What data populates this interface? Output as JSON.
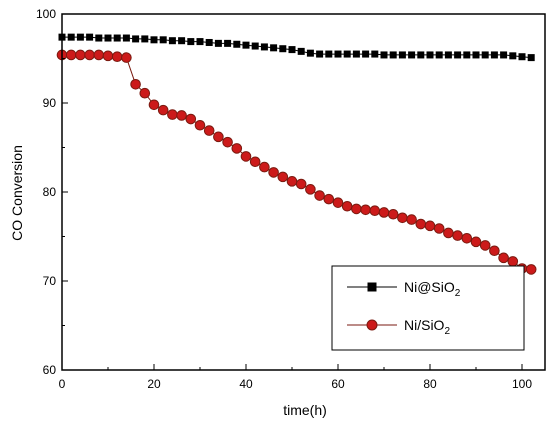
{
  "chart_data": {
    "type": "line",
    "xlabel": "time(h)",
    "ylabel": "CO Conversion",
    "xlim": [
      0,
      105
    ],
    "ylim": [
      60,
      100
    ],
    "x_ticks": [
      "0",
      "20",
      "40",
      "60",
      "80",
      "100"
    ],
    "y_ticks": [
      "60",
      "70",
      "80",
      "90",
      "100"
    ],
    "grid": false,
    "legend": {
      "position": "lower-right",
      "items": [
        {
          "prefix": "Ni@SiO",
          "subscript": "2"
        },
        {
          "prefix": "Ni/SiO",
          "subscript": "2"
        }
      ]
    },
    "series": [
      {
        "name": "Ni@SiO2",
        "marker": "square",
        "color": "#000000",
        "x": [
          0,
          2,
          4,
          6,
          8,
          10,
          12,
          14,
          16,
          18,
          20,
          22,
          24,
          26,
          28,
          30,
          32,
          34,
          36,
          38,
          40,
          42,
          44,
          46,
          48,
          50,
          52,
          54,
          56,
          58,
          60,
          62,
          64,
          66,
          68,
          70,
          72,
          74,
          76,
          78,
          80,
          82,
          84,
          86,
          88,
          90,
          92,
          94,
          96,
          98,
          100,
          102
        ],
        "y": [
          97.4,
          97.4,
          97.4,
          97.4,
          97.3,
          97.3,
          97.3,
          97.3,
          97.2,
          97.2,
          97.1,
          97.1,
          97.0,
          97.0,
          96.9,
          96.9,
          96.8,
          96.7,
          96.7,
          96.6,
          96.5,
          96.4,
          96.3,
          96.2,
          96.1,
          96.0,
          95.8,
          95.6,
          95.5,
          95.5,
          95.5,
          95.5,
          95.5,
          95.5,
          95.5,
          95.4,
          95.4,
          95.4,
          95.4,
          95.4,
          95.4,
          95.4,
          95.4,
          95.4,
          95.4,
          95.4,
          95.4,
          95.4,
          95.4,
          95.3,
          95.2,
          95.1
        ]
      },
      {
        "name": "Ni/SiO2",
        "marker": "circle",
        "color": "#cc1a1a",
        "x": [
          0,
          2,
          4,
          6,
          8,
          10,
          12,
          14,
          16,
          18,
          20,
          22,
          24,
          26,
          28,
          30,
          32,
          34,
          36,
          38,
          40,
          42,
          44,
          46,
          48,
          50,
          52,
          54,
          56,
          58,
          60,
          62,
          64,
          66,
          68,
          70,
          72,
          74,
          76,
          78,
          80,
          82,
          84,
          86,
          88,
          90,
          92,
          94,
          96,
          98,
          100,
          102
        ],
        "y": [
          95.4,
          95.4,
          95.4,
          95.4,
          95.4,
          95.3,
          95.2,
          95.1,
          92.1,
          91.1,
          89.8,
          89.2,
          88.7,
          88.6,
          88.2,
          87.5,
          86.9,
          86.2,
          85.6,
          84.9,
          84.0,
          83.4,
          82.8,
          82.2,
          81.7,
          81.2,
          80.9,
          80.3,
          79.6,
          79.2,
          78.8,
          78.4,
          78.1,
          78.0,
          77.9,
          77.7,
          77.5,
          77.1,
          76.9,
          76.4,
          76.2,
          75.9,
          75.4,
          75.1,
          74.8,
          74.4,
          74.0,
          73.4,
          72.6,
          72.2,
          71.4,
          71.3
        ]
      }
    ]
  }
}
